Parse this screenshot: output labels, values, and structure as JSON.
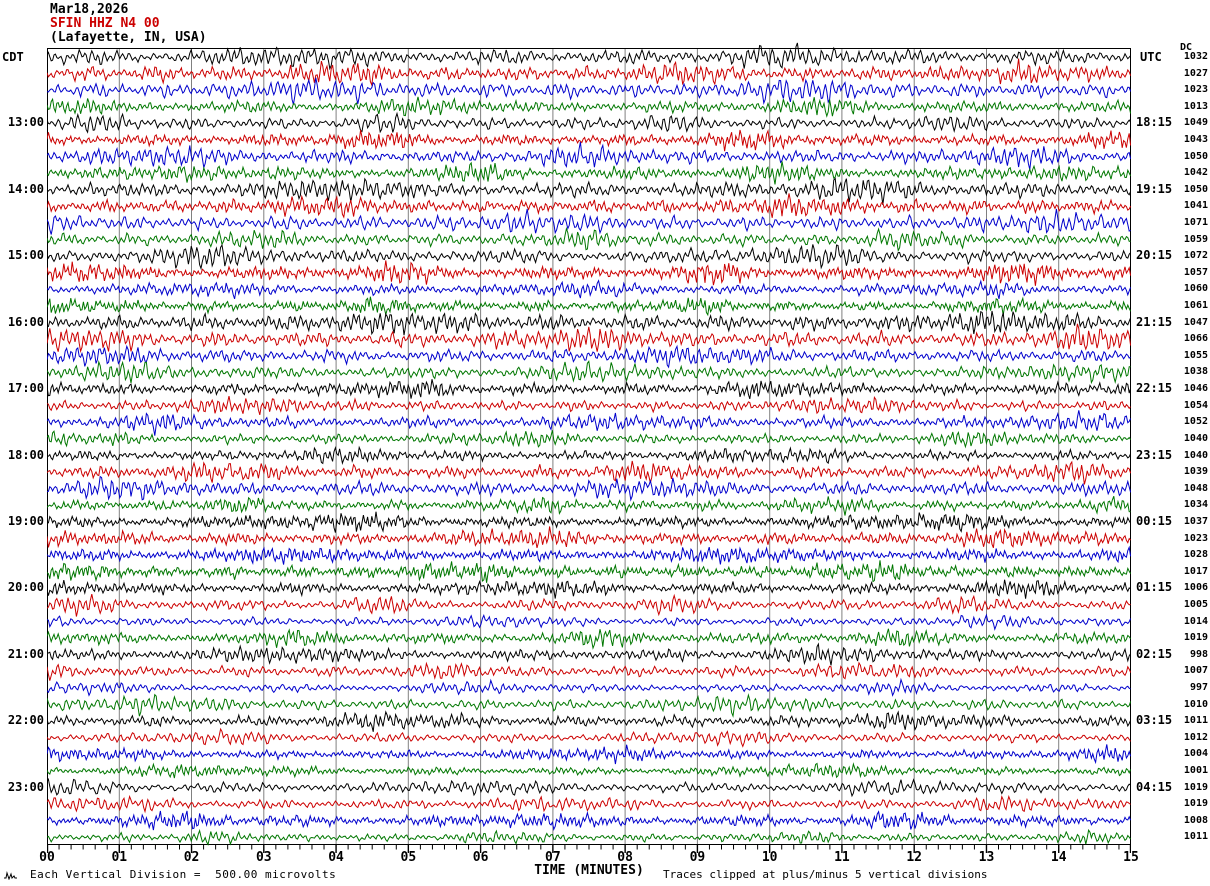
{
  "header": {
    "date": "Mar18,2026",
    "station": "SFIN HHZ N4 00",
    "location": "(Lafayette, IN, USA)"
  },
  "left_axis": {
    "label": "CDT"
  },
  "right_axis": {
    "label": "UTC",
    "dc_label": "DC"
  },
  "footer": {
    "scale_text": "Each Vertical Division =  500.00 microvolts",
    "clip_text": "Traces clipped at plus/minus 5 vertical divisions"
  },
  "colors": {
    "trace_cycle": [
      "#000000",
      "#CC0000",
      "#0000CC",
      "#007700"
    ],
    "grid": "#808080",
    "border": "#000000",
    "accent_red": "#CC0000",
    "background": "#ffffff"
  },
  "chart_data": {
    "type": "line",
    "variant": "helicorder_seismogram",
    "title": "SFIN HHZ N4 00 (Lafayette, IN, USA) Mar18,2026",
    "xlabel": "TIME (MINUTES)",
    "x_range": [
      0,
      15
    ],
    "x_tick_labels": [
      "00",
      "01",
      "02",
      "03",
      "04",
      "05",
      "06",
      "07",
      "08",
      "09",
      "10",
      "11",
      "12",
      "13",
      "14",
      "15"
    ],
    "minor_ticks_per_minute": 6,
    "num_traces": 48,
    "minutes_per_trace": 15,
    "traces_per_hour": 4,
    "grid": "vertical gridline at every minute",
    "legend_position": "none",
    "trace_color_cycle": [
      "#000000",
      "#CC0000",
      "#0000CC",
      "#007700"
    ],
    "left_time_zone": "CDT",
    "right_time_zone": "UTC",
    "left_hour_labels": [
      "13:00",
      "14:00",
      "15:00",
      "16:00",
      "17:00",
      "18:00",
      "19:00",
      "20:00",
      "21:00",
      "22:00",
      "23:00"
    ],
    "right_hour_labels": [
      "18:15",
      "19:15",
      "20:15",
      "21:15",
      "22:15",
      "23:15",
      "00:15",
      "01:15",
      "02:15",
      "03:15",
      "04:15"
    ],
    "hour_label_first_trace_index": 4,
    "right_column_header": "DC",
    "trace_dc_values": [
      1032,
      1027,
      1023,
      1013,
      1049,
      1043,
      1050,
      1042,
      1050,
      1041,
      1071,
      1059,
      1072,
      1057,
      1060,
      1061,
      1047,
      1066,
      1055,
      1038,
      1046,
      1054,
      1052,
      1040,
      1040,
      1039,
      1048,
      1034,
      1037,
      1023,
      1028,
      1017,
      1006,
      1005,
      1014,
      1019,
      998,
      1007,
      997,
      1010,
      1011,
      1012,
      1004,
      1001,
      1019,
      1019,
      1008,
      1011
    ],
    "scale_note": "Each Vertical Division =  500.00 microvolts",
    "clip_note": "Traces clipped at plus/minus 5 vertical divisions",
    "waveform_description": "48 rows of continuous high-frequency microseismic noise, typical amplitude 0.3-1 vertical division with intermittent bursts; individual samples not resolvable"
  }
}
